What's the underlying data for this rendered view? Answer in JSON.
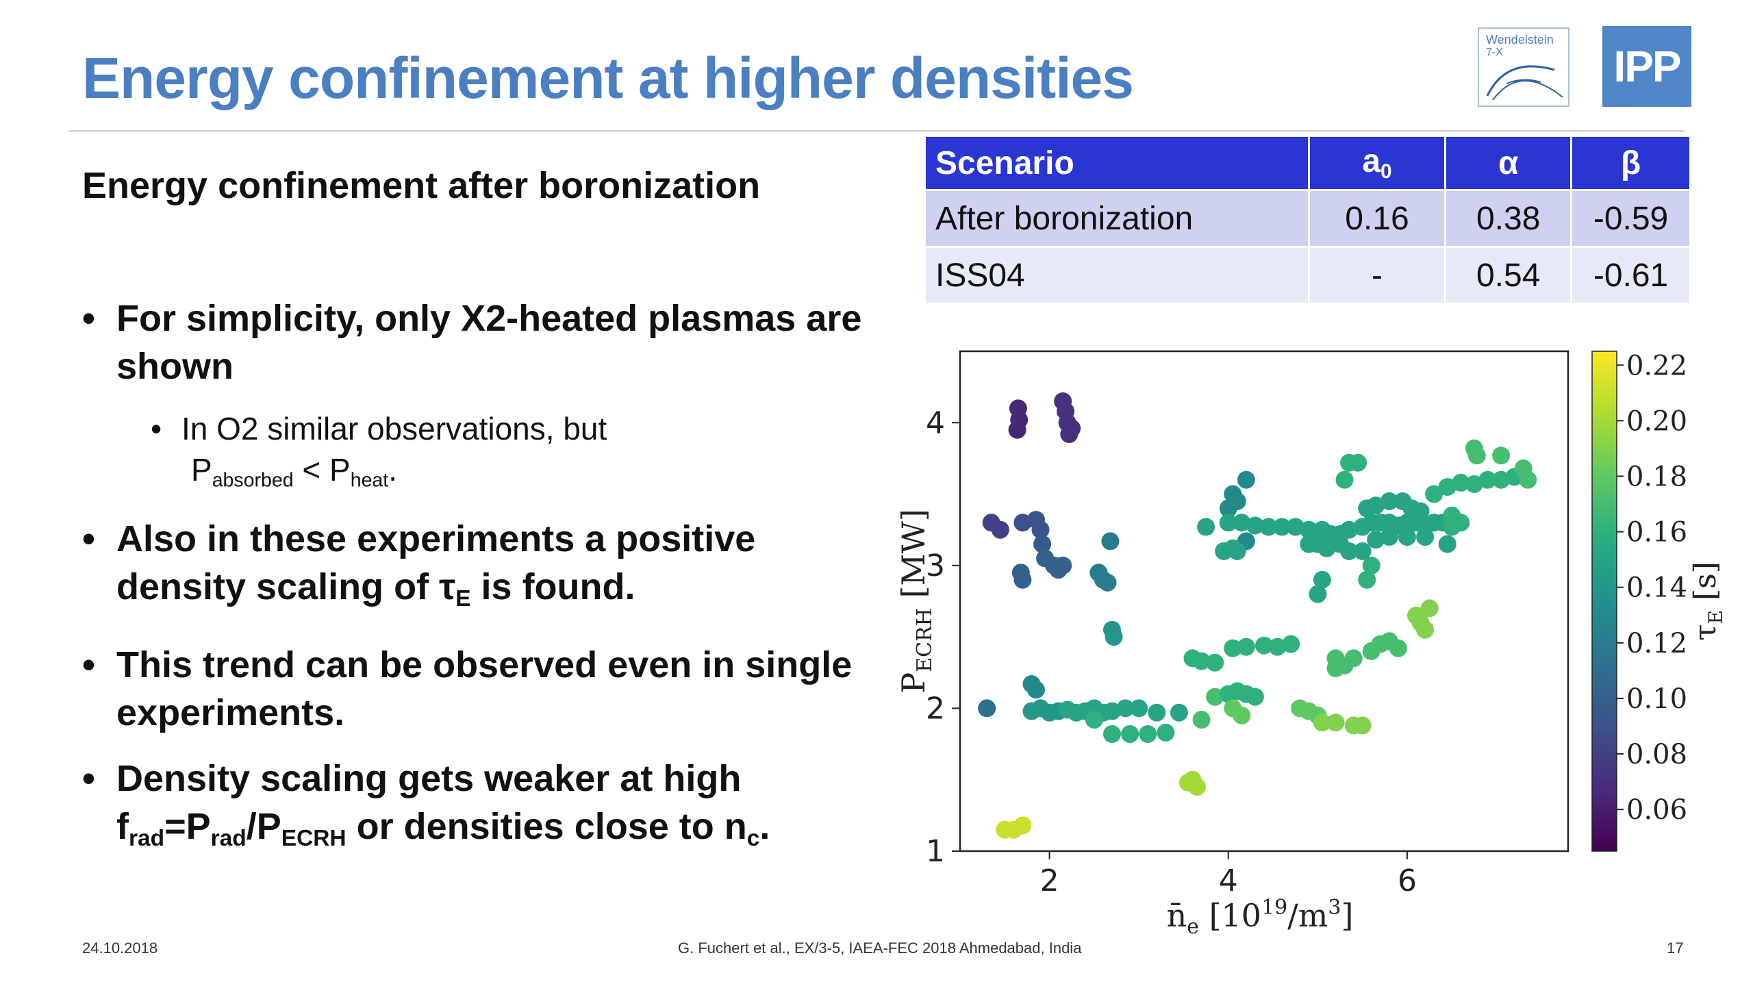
{
  "header": {
    "title": "Energy confinement at higher densities"
  },
  "logos": {
    "w7x_line1": "Wendelstein",
    "w7x_line2": "7-X",
    "ipp": "IPP"
  },
  "subtitle": "Energy confinement after boronization",
  "bullets": {
    "b1": "For simplicity, only X2-heated plasmas are shown",
    "b1_sub_prefix": "In O2 similar observations, but",
    "b1_sub_p1": "P",
    "b1_sub_p1_sub": "absorbed",
    "b1_sub_lt": " < P",
    "b1_sub_p2_sub": "heat",
    "b1_sub_end": ".",
    "b2_prefix": "Also in these experiments a positive density scaling of τ",
    "b2_sub": "E",
    "b2_suffix": " is found.",
    "b3": "This trend can be observed even in single experiments.",
    "b4_prefix": "Density scaling gets weaker at high f",
    "b4_sub1": "rad",
    "b4_eq": "=P",
    "b4_sub2": "rad",
    "b4_slash": "/P",
    "b4_sub3": "ECRH",
    "b4_mid": " or densities close to n",
    "b4_sub4": "c",
    "b4_end": "."
  },
  "table": {
    "headers": [
      "Scenario",
      "a",
      "α",
      "β"
    ],
    "a_sub": "0",
    "rows": [
      [
        "After boronization",
        "0.16",
        "0.38",
        "-0.59"
      ],
      [
        "ISS04",
        "-",
        "0.54",
        "-0.61"
      ]
    ]
  },
  "chart_data": {
    "type": "scatter",
    "xlabel": "n̄e [10^19/m^3]",
    "ylabel": "P_ECRH [MW]",
    "colorbar_label": "τE [s]",
    "xlim": [
      1.0,
      7.8
    ],
    "ylim": [
      1.0,
      4.5
    ],
    "x_ticks": [
      2,
      4,
      6
    ],
    "y_ticks": [
      1,
      2,
      3,
      4
    ],
    "colorbar_range": [
      0.045,
      0.225
    ],
    "colorbar_ticks": [
      "0.06",
      "0.08",
      "0.10",
      "0.12",
      "0.14",
      "0.16",
      "0.18",
      "0.20",
      "0.22"
    ],
    "colormap": "viridis",
    "points": [
      [
        1.65,
        4.1,
        0.065
      ],
      [
        1.66,
        4.02,
        0.065
      ],
      [
        1.64,
        3.95,
        0.065
      ],
      [
        2.15,
        4.15,
        0.07
      ],
      [
        2.18,
        4.08,
        0.07
      ],
      [
        2.2,
        4.0,
        0.07
      ],
      [
        2.25,
        3.96,
        0.07
      ],
      [
        2.22,
        3.92,
        0.07
      ],
      [
        1.35,
        3.3,
        0.08
      ],
      [
        1.45,
        3.25,
        0.08
      ],
      [
        1.7,
        3.3,
        0.09
      ],
      [
        1.85,
        3.32,
        0.09
      ],
      [
        1.9,
        3.25,
        0.09
      ],
      [
        1.92,
        3.15,
        0.095
      ],
      [
        1.95,
        3.05,
        0.1
      ],
      [
        2.05,
        3.0,
        0.1
      ],
      [
        2.15,
        3.0,
        0.1
      ],
      [
        2.1,
        2.97,
        0.1
      ],
      [
        1.68,
        2.95,
        0.1
      ],
      [
        1.7,
        2.9,
        0.1
      ],
      [
        2.55,
        2.95,
        0.12
      ],
      [
        2.6,
        2.9,
        0.12
      ],
      [
        2.65,
        2.88,
        0.12
      ],
      [
        2.68,
        3.17,
        0.12
      ],
      [
        2.7,
        2.55,
        0.14
      ],
      [
        2.72,
        2.5,
        0.14
      ],
      [
        1.3,
        2.0,
        0.11
      ],
      [
        1.8,
        2.17,
        0.13
      ],
      [
        1.85,
        2.13,
        0.13
      ],
      [
        1.8,
        1.98,
        0.14
      ],
      [
        1.9,
        2.0,
        0.14
      ],
      [
        2.0,
        1.97,
        0.14
      ],
      [
        2.1,
        1.98,
        0.14
      ],
      [
        2.2,
        1.99,
        0.15
      ],
      [
        2.3,
        1.97,
        0.15
      ],
      [
        2.4,
        1.98,
        0.15
      ],
      [
        2.5,
        2.0,
        0.15
      ],
      [
        2.6,
        1.97,
        0.15
      ],
      [
        2.7,
        1.98,
        0.15
      ],
      [
        2.85,
        2.0,
        0.15
      ],
      [
        3.0,
        2.0,
        0.15
      ],
      [
        3.2,
        1.97,
        0.15
      ],
      [
        3.45,
        1.97,
        0.15
      ],
      [
        2.5,
        1.92,
        0.16
      ],
      [
        2.7,
        1.82,
        0.16
      ],
      [
        2.9,
        1.82,
        0.16
      ],
      [
        3.1,
        1.82,
        0.16
      ],
      [
        3.3,
        1.83,
        0.16
      ],
      [
        1.5,
        1.15,
        0.21
      ],
      [
        1.6,
        1.15,
        0.21
      ],
      [
        1.7,
        1.18,
        0.21
      ],
      [
        3.55,
        1.48,
        0.2
      ],
      [
        3.65,
        1.45,
        0.2
      ],
      [
        3.6,
        1.5,
        0.2
      ],
      [
        3.7,
        1.92,
        0.17
      ],
      [
        3.85,
        2.08,
        0.17
      ],
      [
        4.0,
        2.1,
        0.16
      ],
      [
        4.1,
        2.12,
        0.16
      ],
      [
        4.2,
        2.1,
        0.16
      ],
      [
        4.3,
        2.08,
        0.16
      ],
      [
        4.05,
        2.0,
        0.18
      ],
      [
        4.15,
        1.95,
        0.18
      ],
      [
        4.8,
        2.0,
        0.18
      ],
      [
        4.9,
        1.98,
        0.18
      ],
      [
        5.0,
        1.95,
        0.18
      ],
      [
        5.05,
        1.9,
        0.19
      ],
      [
        5.2,
        1.9,
        0.19
      ],
      [
        5.4,
        1.88,
        0.19
      ],
      [
        5.5,
        1.88,
        0.19
      ],
      [
        3.6,
        2.35,
        0.16
      ],
      [
        3.7,
        2.33,
        0.16
      ],
      [
        3.85,
        2.32,
        0.16
      ],
      [
        4.05,
        2.42,
        0.16
      ],
      [
        4.2,
        2.43,
        0.16
      ],
      [
        4.4,
        2.44,
        0.16
      ],
      [
        4.55,
        2.43,
        0.16
      ],
      [
        4.7,
        2.45,
        0.16
      ],
      [
        5.2,
        2.35,
        0.17
      ],
      [
        5.3,
        2.3,
        0.17
      ],
      [
        5.4,
        2.35,
        0.17
      ],
      [
        5.6,
        2.4,
        0.17
      ],
      [
        5.7,
        2.45,
        0.17
      ],
      [
        5.8,
        2.47,
        0.17
      ],
      [
        5.9,
        2.42,
        0.17
      ],
      [
        5.2,
        2.28,
        0.17
      ],
      [
        6.1,
        2.65,
        0.19
      ],
      [
        6.15,
        2.6,
        0.19
      ],
      [
        6.2,
        2.55,
        0.19
      ],
      [
        6.25,
        2.7,
        0.19
      ],
      [
        4.2,
        3.17,
        0.13
      ],
      [
        4.0,
        3.4,
        0.13
      ],
      [
        4.05,
        3.5,
        0.13
      ],
      [
        4.1,
        3.45,
        0.13
      ],
      [
        4.2,
        3.6,
        0.13
      ],
      [
        3.75,
        3.27,
        0.15
      ],
      [
        3.95,
        3.1,
        0.15
      ],
      [
        4.05,
        3.12,
        0.15
      ],
      [
        4.1,
        3.1,
        0.15
      ],
      [
        4.0,
        3.3,
        0.15
      ],
      [
        4.15,
        3.3,
        0.15
      ],
      [
        4.3,
        3.28,
        0.15
      ],
      [
        4.45,
        3.27,
        0.15
      ],
      [
        4.6,
        3.27,
        0.15
      ],
      [
        4.75,
        3.27,
        0.15
      ],
      [
        4.9,
        3.25,
        0.15
      ],
      [
        5.05,
        3.25,
        0.15
      ],
      [
        5.15,
        3.22,
        0.15
      ],
      [
        5.25,
        3.22,
        0.15
      ],
      [
        5.35,
        3.25,
        0.15
      ],
      [
        5.5,
        3.27,
        0.15
      ],
      [
        5.6,
        3.3,
        0.15
      ],
      [
        5.7,
        3.3,
        0.15
      ],
      [
        5.8,
        3.3,
        0.15
      ],
      [
        5.9,
        3.28,
        0.15
      ],
      [
        6.0,
        3.3,
        0.15
      ],
      [
        6.1,
        3.3,
        0.15
      ],
      [
        6.2,
        3.28,
        0.15
      ],
      [
        6.3,
        3.3,
        0.15
      ],
      [
        6.4,
        3.3,
        0.15
      ],
      [
        6.5,
        3.27,
        0.16
      ],
      [
        6.6,
        3.3,
        0.16
      ],
      [
        4.9,
        3.15,
        0.15
      ],
      [
        5.0,
        3.15,
        0.15
      ],
      [
        5.1,
        3.12,
        0.15
      ],
      [
        5.25,
        3.15,
        0.15
      ],
      [
        5.35,
        3.1,
        0.15
      ],
      [
        5.5,
        3.1,
        0.15
      ],
      [
        5.65,
        3.18,
        0.15
      ],
      [
        5.8,
        3.2,
        0.15
      ],
      [
        6.0,
        3.2,
        0.15
      ],
      [
        6.2,
        3.2,
        0.15
      ],
      [
        6.45,
        3.15,
        0.15
      ],
      [
        5.55,
        3.4,
        0.15
      ],
      [
        5.65,
        3.42,
        0.15
      ],
      [
        5.8,
        3.45,
        0.15
      ],
      [
        5.95,
        3.45,
        0.15
      ],
      [
        6.05,
        3.4,
        0.15
      ],
      [
        6.15,
        3.38,
        0.15
      ],
      [
        5.3,
        3.6,
        0.16
      ],
      [
        5.35,
        3.72,
        0.16
      ],
      [
        5.45,
        3.72,
        0.16
      ],
      [
        5.0,
        2.8,
        0.15
      ],
      [
        5.05,
        2.9,
        0.15
      ],
      [
        5.55,
        2.9,
        0.16
      ],
      [
        5.6,
        3.0,
        0.16
      ],
      [
        6.3,
        3.5,
        0.16
      ],
      [
        6.45,
        3.55,
        0.16
      ],
      [
        6.6,
        3.58,
        0.16
      ],
      [
        6.75,
        3.57,
        0.16
      ],
      [
        6.9,
        3.6,
        0.16
      ],
      [
        7.05,
        3.6,
        0.16
      ],
      [
        7.2,
        3.62,
        0.16
      ],
      [
        7.35,
        3.6,
        0.17
      ],
      [
        7.3,
        3.68,
        0.17
      ],
      [
        6.75,
        3.82,
        0.17
      ],
      [
        6.78,
        3.77,
        0.17
      ],
      [
        7.05,
        3.77,
        0.17
      ],
      [
        6.5,
        3.35,
        0.16
      ]
    ]
  },
  "footer": {
    "date": "24.10.2018",
    "citation": "G. Fuchert et al., EX/3-5, IAEA-FEC 2018 Ahmedabad, India",
    "page": "17"
  }
}
